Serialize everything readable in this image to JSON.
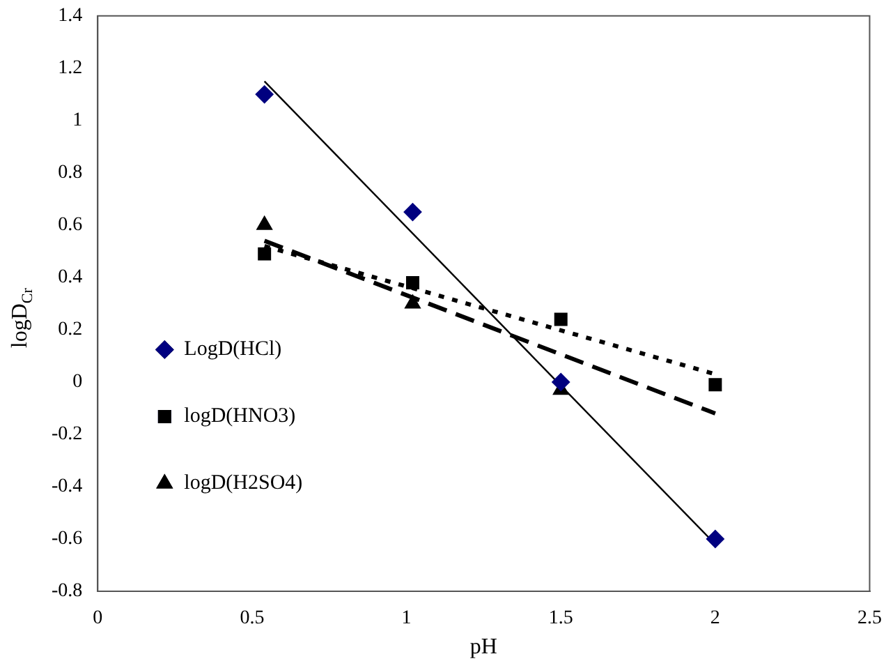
{
  "chart_data": {
    "type": "scatter",
    "xlabel": "pH",
    "ylabel": "logD$_{Cr}$",
    "xlim": [
      0,
      2.5
    ],
    "xticks": [
      0,
      0.5,
      1,
      1.5,
      2,
      2.5
    ],
    "ylim": [
      -0.8,
      1.4
    ],
    "yticks": [
      -0.8,
      -0.6,
      -0.4,
      -0.2,
      0,
      0.2,
      0.4,
      0.6,
      0.8,
      1,
      1.2,
      1.4
    ],
    "grid": false,
    "legend": "left",
    "series": [
      {
        "name": "LogD(HCl)",
        "marker": "diamond",
        "color": "#000080",
        "x": [
          0.54,
          1.02,
          1.5,
          2.0
        ],
        "values": [
          1.1,
          0.65,
          0.0,
          -0.6
        ]
      },
      {
        "name": "logD(HNO3)",
        "marker": "square",
        "color": "#000000",
        "x": [
          0.54,
          1.02,
          1.5,
          2.0
        ],
        "values": [
          0.49,
          0.38,
          0.24,
          -0.01
        ]
      },
      {
        "name": "logD(H2SO4)",
        "marker": "triangle",
        "color": "#000000",
        "x": [
          0.54,
          1.02,
          1.5
        ],
        "values": [
          0.6,
          0.3,
          -0.03
        ]
      },
      {
        "type": "line",
        "line_style": "solid",
        "color": "#000000",
        "x": [
          0.54,
          2.0
        ],
        "values": [
          1.15,
          -0.62
        ]
      },
      {
        "type": "line",
        "line_style": "dotted",
        "color": "#000000",
        "x": [
          0.54,
          2.0
        ],
        "values": [
          0.52,
          0.03
        ]
      },
      {
        "type": "line",
        "line_style": "dashed",
        "color": "#000000",
        "x": [
          0.54,
          2.0
        ],
        "values": [
          0.54,
          -0.12
        ]
      }
    ]
  }
}
